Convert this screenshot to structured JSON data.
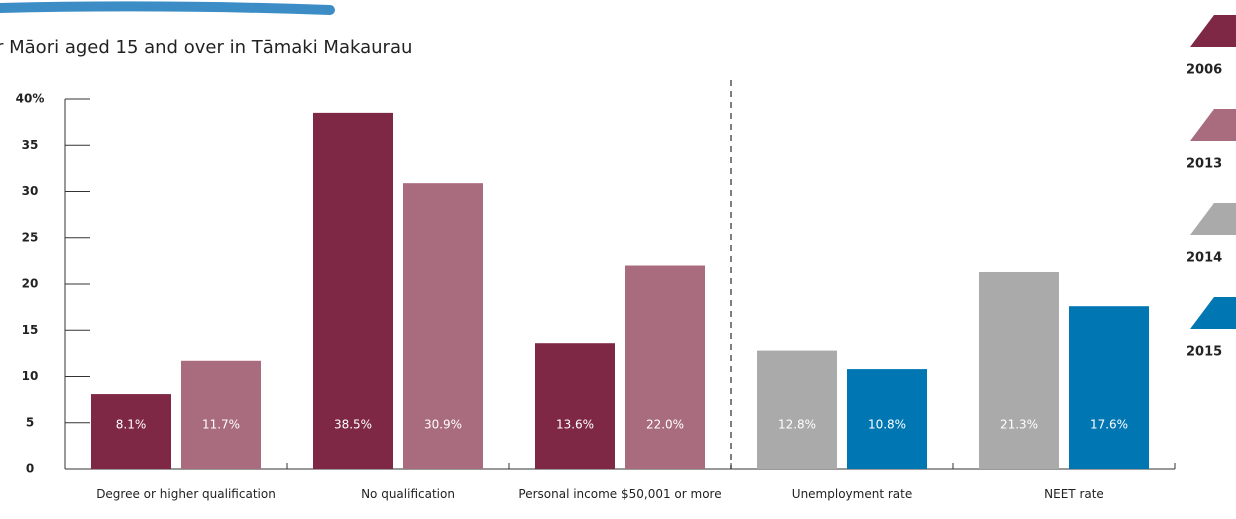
{
  "chart_data": {
    "type": "bar",
    "title": "r Māori aged 15 and over in Tāmaki Makaurau",
    "categories": [
      "Degree or higher qualification",
      "No qualification",
      "Personal income $50,001 or more",
      "Unemployment rate",
      "NEET rate"
    ],
    "series": [
      {
        "name": "2006",
        "color": "#7f2845",
        "values": [
          8.1,
          38.5,
          13.6,
          null,
          null
        ],
        "value_labels": [
          "8.1%",
          "38.5%",
          "13.6%",
          null,
          null
        ]
      },
      {
        "name": "2013",
        "color": "#a96b7e",
        "values": [
          11.7,
          30.9,
          22.0,
          null,
          null
        ],
        "value_labels": [
          "11.7%",
          "30.9%",
          "22.0%",
          null,
          null
        ]
      },
      {
        "name": "2014",
        "color": "#aaaaaa",
        "values": [
          null,
          null,
          null,
          12.8,
          21.3
        ],
        "value_labels": [
          null,
          null,
          null,
          "12.8%",
          "21.3%"
        ]
      },
      {
        "name": "2015",
        "color": "#0077b3",
        "values": [
          null,
          null,
          null,
          10.8,
          17.6
        ],
        "value_labels": [
          null,
          null,
          null,
          "10.8%",
          "17.6%"
        ]
      }
    ],
    "ylim": [
      0,
      40
    ],
    "yticks": [
      0,
      5,
      10,
      15,
      20,
      25,
      30,
      35,
      {
        "value": 40,
        "label": "40%"
      }
    ]
  }
}
